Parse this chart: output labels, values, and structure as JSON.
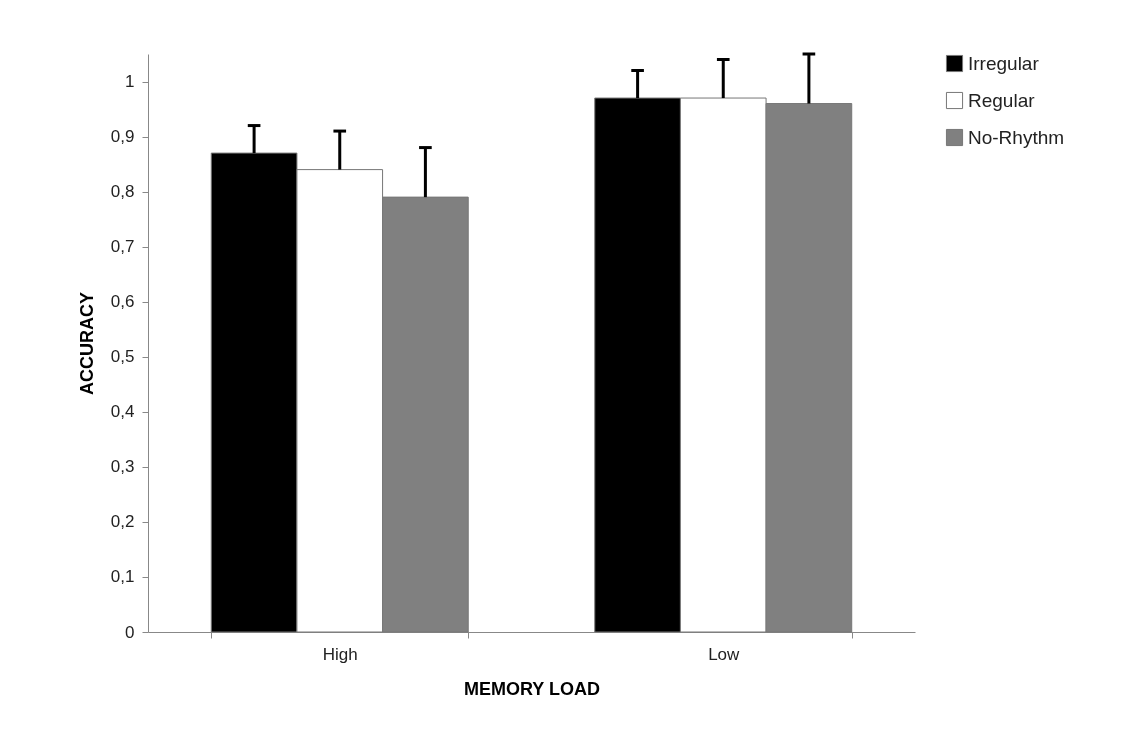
{
  "chart_data": {
    "type": "bar",
    "xlabel": "MEMORY LOAD",
    "ylabel": "ACCURACY",
    "categories": [
      "High",
      "Low"
    ],
    "series": [
      {
        "name": "Irregular",
        "color": "#000000",
        "values": [
          0.87,
          0.97
        ],
        "errors": [
          0.05,
          0.05
        ]
      },
      {
        "name": "Regular",
        "color": "#ffffff",
        "values": [
          0.84,
          0.97
        ],
        "errors": [
          0.07,
          0.07
        ]
      },
      {
        "name": "No-Rhythm",
        "color": "#808080",
        "values": [
          0.79,
          0.96
        ],
        "errors": [
          0.09,
          0.09
        ]
      }
    ],
    "ylim": [
      0,
      1.05
    ],
    "yticks": [
      {
        "value": 0,
        "label": "0"
      },
      {
        "value": 0.1,
        "label": "0,1"
      },
      {
        "value": 0.2,
        "label": "0,2"
      },
      {
        "value": 0.3,
        "label": "0,3"
      },
      {
        "value": 0.4,
        "label": "0,4"
      },
      {
        "value": 0.5,
        "label": "0,5"
      },
      {
        "value": 0.6,
        "label": "0,6"
      },
      {
        "value": 0.7,
        "label": "0,7"
      },
      {
        "value": 0.8,
        "label": "0,8"
      },
      {
        "value": 0.9,
        "label": "0,9"
      },
      {
        "value": 1,
        "label": "1"
      }
    ],
    "grid": false,
    "legend": "right"
  }
}
